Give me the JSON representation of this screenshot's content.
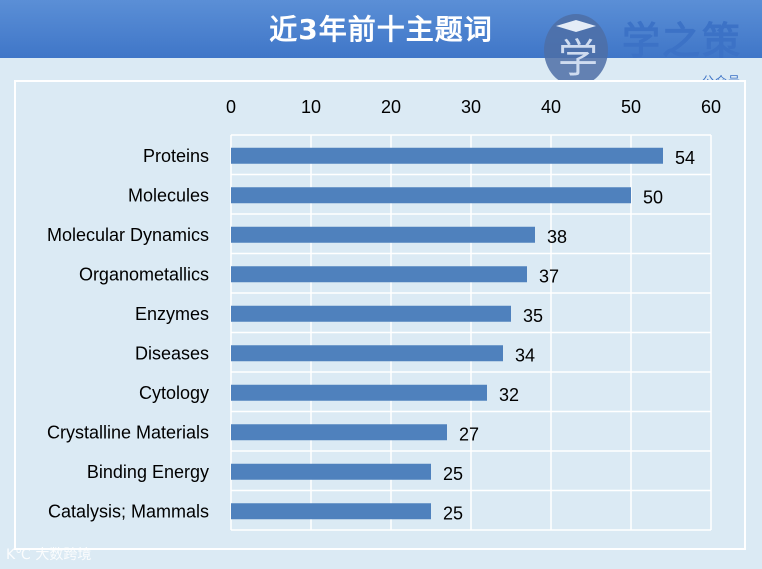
{
  "header": {
    "title": "近3年前十主题词"
  },
  "logo": {
    "char": "学",
    "name": "学之策",
    "sub": "公众号"
  },
  "watermark": {
    "text": "K℃ 大数跨境"
  },
  "colors": {
    "bar": "#4f81bd",
    "header": "#4a80cf",
    "background": "#dbeaf4",
    "grid": "#ffffff"
  },
  "chart_data": {
    "type": "bar",
    "orientation": "horizontal",
    "title": "",
    "xlabel": "",
    "ylabel": "",
    "xlim": [
      0,
      60
    ],
    "ticks": [
      0,
      10,
      20,
      30,
      40,
      50,
      60
    ],
    "axis_position": "top",
    "grid": true,
    "legend": "none",
    "categories": [
      "Proteins",
      "Molecules",
      "Molecular Dynamics",
      "Organometallics",
      "Enzymes",
      "Diseases",
      "Cytology",
      "Crystalline Materials",
      "Binding Energy",
      "Catalysis; Mammals"
    ],
    "values": [
      54,
      50,
      38,
      37,
      35,
      34,
      32,
      27,
      25,
      25
    ]
  }
}
